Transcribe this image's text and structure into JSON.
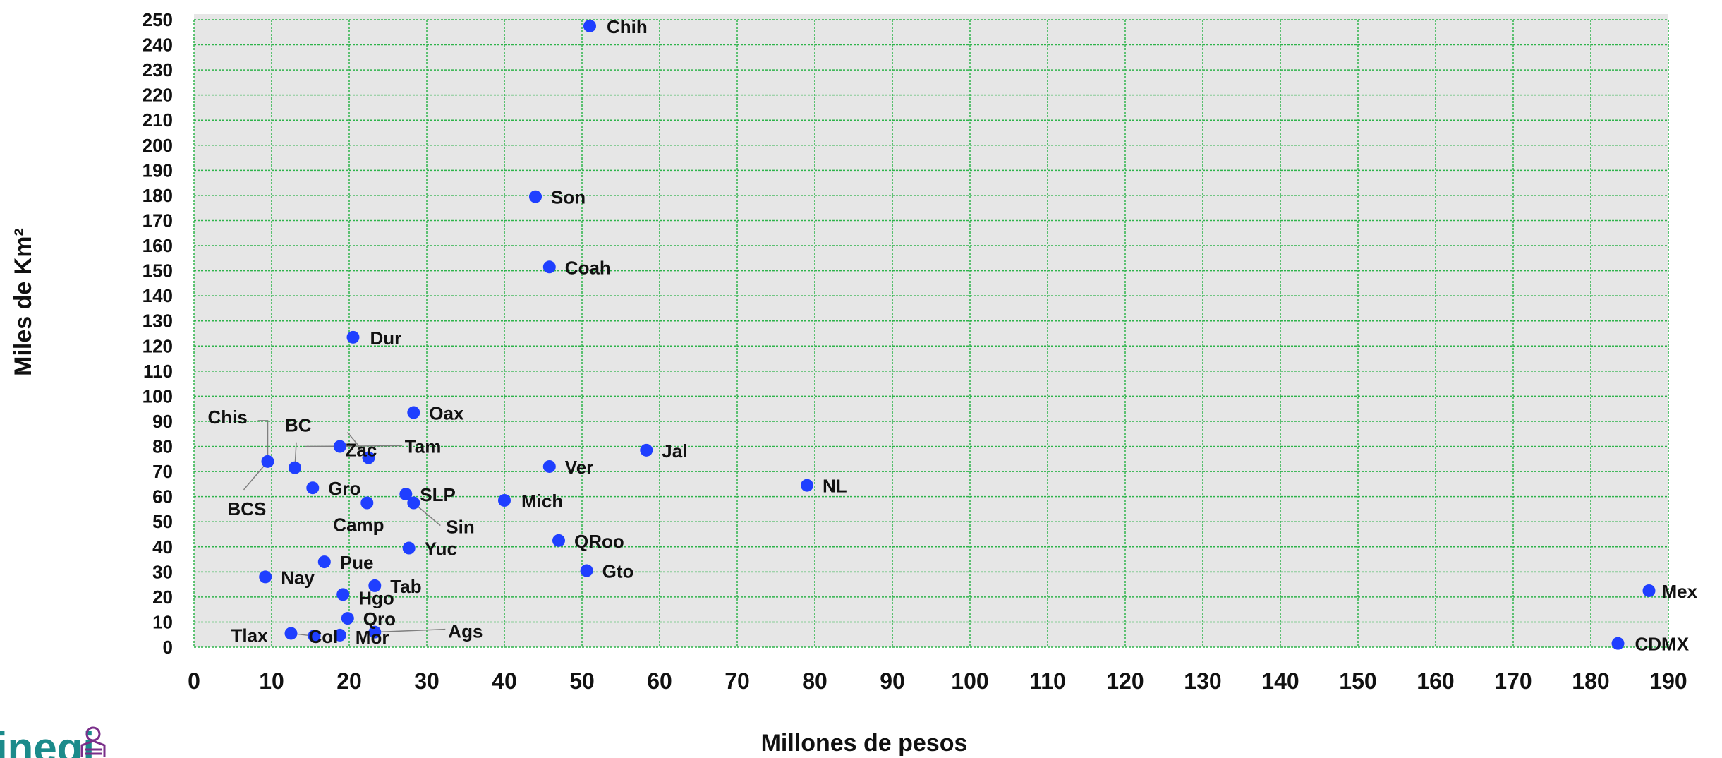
{
  "chart_data": {
    "type": "scatter",
    "xlabel": "Millones de pesos",
    "ylabel": "Miles de Km²",
    "xlim": [
      0,
      190
    ],
    "ylim": [
      0,
      250
    ],
    "x_ticks": [
      0,
      10,
      20,
      30,
      40,
      50,
      60,
      70,
      80,
      90,
      100,
      110,
      120,
      130,
      140,
      150,
      160,
      170,
      180,
      190
    ],
    "y_ticks": [
      0,
      10,
      20,
      30,
      40,
      50,
      60,
      70,
      80,
      90,
      100,
      110,
      120,
      130,
      140,
      150,
      160,
      170,
      180,
      190,
      200,
      210,
      220,
      230,
      240,
      250
    ],
    "grid": true,
    "background": "#e6e6e6",
    "grid_color": "#2db34a",
    "point_color": "#1f3fff",
    "points": [
      {
        "label": "Chih",
        "x": 51.0,
        "y": 247.5
      },
      {
        "label": "Son",
        "x": 44.0,
        "y": 179.5
      },
      {
        "label": "Coah",
        "x": 45.8,
        "y": 151.5
      },
      {
        "label": "Dur",
        "x": 20.5,
        "y": 123.5
      },
      {
        "label": "Oax",
        "x": 28.3,
        "y": 93.5
      },
      {
        "label": "Chis",
        "x": 9.5,
        "y": 74.0
      },
      {
        "label": "BC",
        "x": 13.0,
        "y": 71.5
      },
      {
        "label": "Zac",
        "x": 22.5,
        "y": 75.5
      },
      {
        "label": "Tam",
        "x": 18.8,
        "y": 80.0
      },
      {
        "label": "Jal",
        "x": 58.3,
        "y": 78.5
      },
      {
        "label": "Ver",
        "x": 45.8,
        "y": 72.0
      },
      {
        "label": "NL",
        "x": 79.0,
        "y": 64.5
      },
      {
        "label": "Gro",
        "x": 15.3,
        "y": 63.5
      },
      {
        "label": "SLP",
        "x": 27.3,
        "y": 61.0
      },
      {
        "label": "Camp",
        "x": 22.3,
        "y": 57.5
      },
      {
        "label": "Sin",
        "x": 28.3,
        "y": 57.5
      },
      {
        "label": "Mich",
        "x": 40.0,
        "y": 58.5
      },
      {
        "label": "QRoo",
        "x": 47.0,
        "y": 42.5
      },
      {
        "label": "Yuc",
        "x": 27.7,
        "y": 39.5
      },
      {
        "label": "Gto",
        "x": 50.6,
        "y": 30.5
      },
      {
        "label": "Pue",
        "x": 16.8,
        "y": 34.0
      },
      {
        "label": "Nay",
        "x": 9.2,
        "y": 28.0
      },
      {
        "label": "Tab",
        "x": 23.3,
        "y": 24.5
      },
      {
        "label": "Hgo",
        "x": 19.2,
        "y": 21.0
      },
      {
        "label": "Qro",
        "x": 19.8,
        "y": 11.5
      },
      {
        "label": "Tlax",
        "x": 12.5,
        "y": 5.5
      },
      {
        "label": "Col",
        "x": 15.5,
        "y": 4.5
      },
      {
        "label": "Mor",
        "x": 18.8,
        "y": 4.8
      },
      {
        "label": "Ags",
        "x": 23.3,
        "y": 6.0
      },
      {
        "label": "BCS",
        "x": 9.5,
        "y": 74.0
      },
      {
        "label": "Mex",
        "x": 187.5,
        "y": 22.5
      },
      {
        "label": "CDMX",
        "x": 183.5,
        "y": 1.5
      }
    ]
  },
  "logo": {
    "text": "inegi"
  }
}
